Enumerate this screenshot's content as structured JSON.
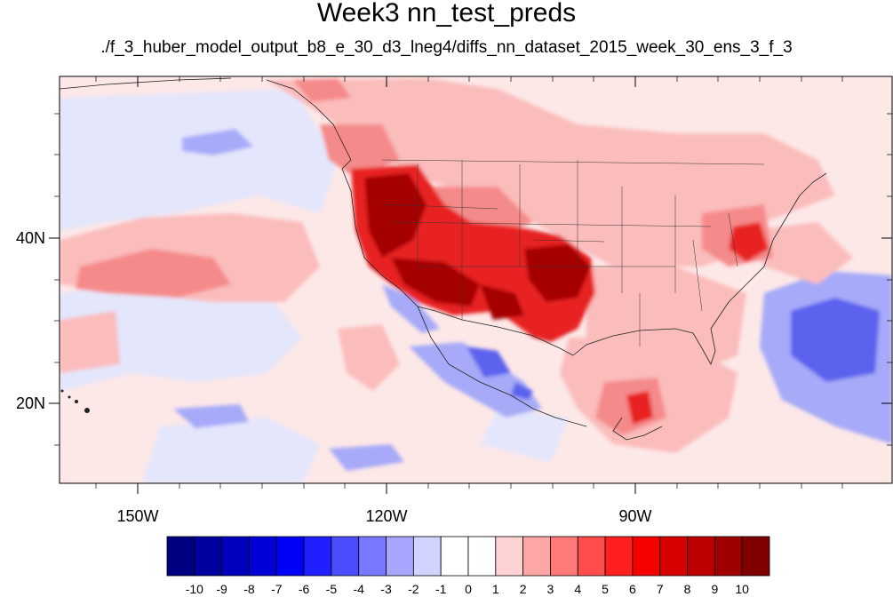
{
  "title": "Week3 nn_test_preds",
  "subtitle": "./f_3_huber_model_output_b8_e_30_d3_lneg4/diffs_nn_dataset_2015_week_30_ens_3_f_3",
  "axes": {
    "lon_ticks": [
      "150W",
      "120W",
      "90W"
    ],
    "lat_ticks": [
      "40N",
      "20N"
    ],
    "lon_range": [
      -160,
      -60
    ],
    "lat_range": [
      10,
      60
    ]
  },
  "colorbar": {
    "labels": [
      "-10",
      "-9",
      "-8",
      "-7",
      "-6",
      "-5",
      "-4",
      "-3",
      "-2",
      "-1",
      "0",
      "1",
      "2",
      "3",
      "4",
      "5",
      "6",
      "7",
      "8",
      "9",
      "10"
    ],
    "colors": [
      "#000080",
      "#00009e",
      "#0000bc",
      "#0000d9",
      "#0000f7",
      "#1f1fff",
      "#4c4cff",
      "#7979ff",
      "#a6a6ff",
      "#d3d3ff",
      "#ffffff",
      "#ffd3d3",
      "#ffa6a6",
      "#ff7979",
      "#ff4c4c",
      "#ff1f1f",
      "#f70000",
      "#d90000",
      "#bc0000",
      "#9e0000",
      "#800000"
    ]
  },
  "map_colors": {
    "ocean_neutral": "#fde8e8",
    "light_blue": "#e4e6fb",
    "mid_blue": "#a6aaf8",
    "deep_blue": "#5b62ee",
    "light_red": "#fbbcbc",
    "mid_red": "#f58a8a",
    "strong_red": "#e82020",
    "dark_red": "#a50000"
  }
}
